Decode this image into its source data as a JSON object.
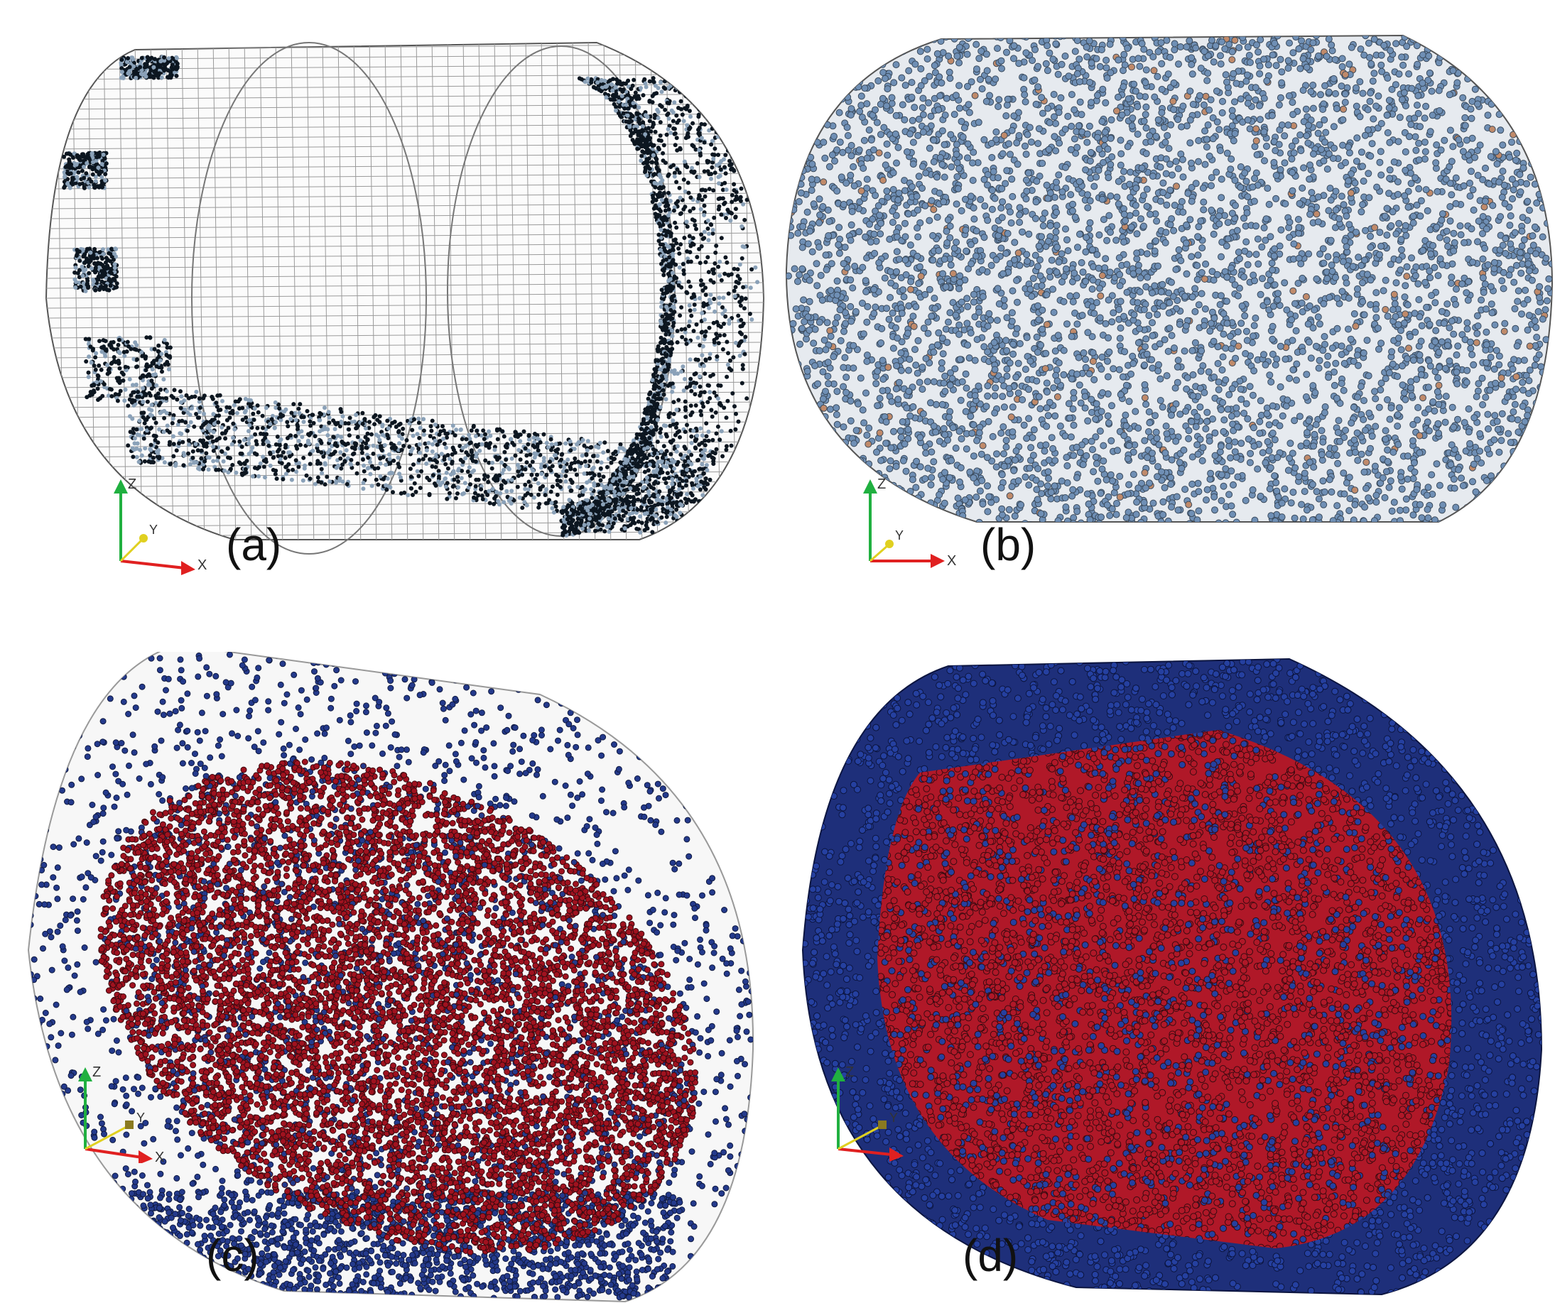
{
  "panels": [
    {
      "id": "a",
      "label": "(a)",
      "colors": {
        "particle": "#8aa1b8",
        "dense": "#0c1620",
        "mesh": "#9a9a9a"
      }
    },
    {
      "id": "b",
      "label": "(b)",
      "colors": {
        "particle": "#6f8fb5",
        "accent": "#c08a6a",
        "mesh": "#9a9a9a"
      }
    },
    {
      "id": "c",
      "label": "(c)",
      "colors": {
        "red": "#a0121f",
        "blue": "#243a8c",
        "mesh": "#b0b0b0"
      }
    },
    {
      "id": "d",
      "label": "(d)",
      "colors": {
        "red": "#b01828",
        "blue": "#2540a0",
        "mesh": "#b0b0b0"
      }
    }
  ],
  "axes": {
    "x": "X",
    "y": "Y",
    "z": "Z",
    "x_color": "#e02020",
    "y_color": "#e0d020",
    "z_color": "#20b040"
  }
}
